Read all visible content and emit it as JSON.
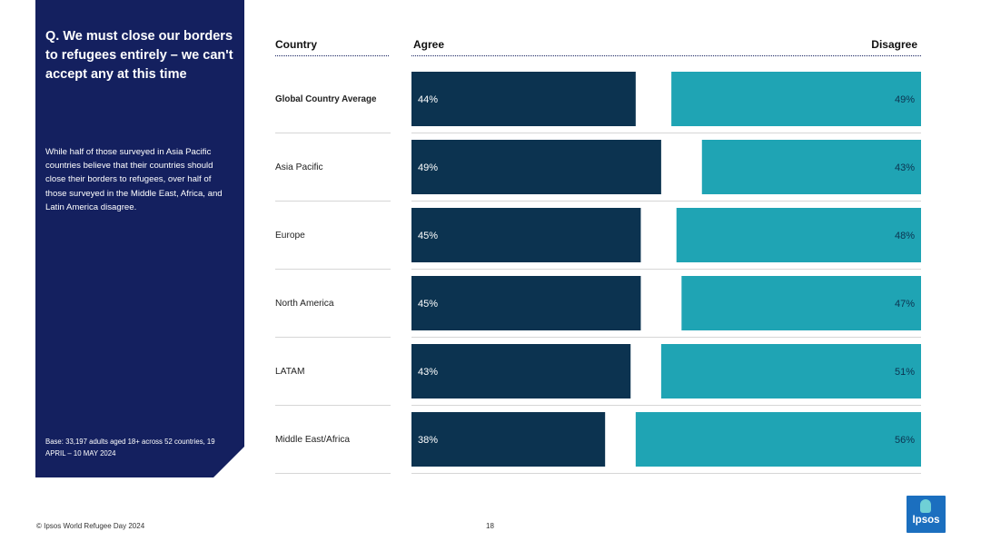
{
  "panel": {
    "question": "Q. We must close our borders to refugees entirely – we can't accept any at this time",
    "summary": "While half of those surveyed in Asia Pacific countries believe that their countries should close their borders to refugees, over half of those surveyed in the Middle East, Africa, and Latin America disagree.",
    "base": "Base: 33,197 adults aged 18+ across 52 countries, 19 APRIL – 10 MAY 2024"
  },
  "headers": {
    "country": "Country",
    "agree": "Agree",
    "disagree": "Disagree"
  },
  "footer": {
    "source": "© Ipsos World Refugee Day 2024",
    "page": "18"
  },
  "logo": {
    "text": "Ipsos"
  },
  "colors": {
    "agree": "#0c3350",
    "disagree": "#1fa4b4",
    "panel": "#14205f"
  },
  "chart_data": {
    "type": "bar",
    "categories": [
      "Global Country Average",
      "Asia Pacific",
      "Europe",
      "North America",
      "LATAM",
      "Middle East/Africa"
    ],
    "series": [
      {
        "name": "Agree",
        "values": [
          44,
          49,
          45,
          45,
          43,
          38
        ]
      },
      {
        "name": "Disagree",
        "values": [
          49,
          43,
          48,
          47,
          51,
          56
        ]
      }
    ],
    "value_suffix": "%",
    "xlim": [
      0,
      100
    ],
    "grid": false,
    "orientation": "horizontal-diverging"
  }
}
